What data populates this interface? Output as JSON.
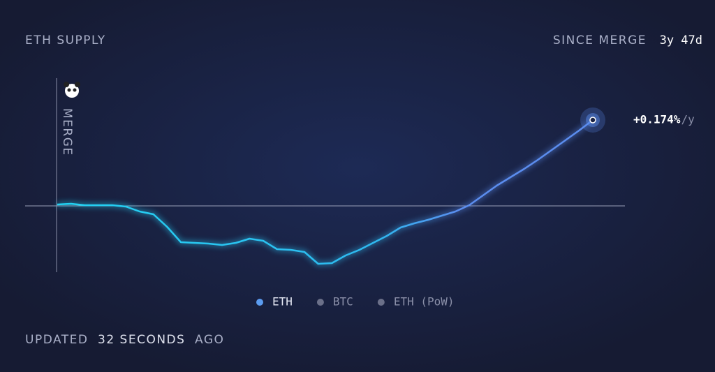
{
  "header": {
    "title": "ETH SUPPLY",
    "since_label": "SINCE MERGE",
    "since_value": "3y 47d"
  },
  "chart_data": {
    "type": "line",
    "marker_label": "MERGE",
    "series": [
      {
        "name": "ETH",
        "color": "#5b8def",
        "values": [
          2,
          3,
          1,
          1,
          1,
          -1,
          -8,
          -12,
          -30,
          -52,
          -53,
          -54,
          -56,
          -53,
          -47,
          -50,
          -62,
          -63,
          -66,
          -83,
          -82,
          -71,
          -63,
          -53,
          -43,
          -31,
          -25,
          -20,
          -14,
          -8,
          1,
          15,
          29,
          41,
          53,
          66,
          80,
          94,
          108,
          123
        ]
      }
    ],
    "legend": [
      {
        "name": "ETH",
        "color": "#5b9cf0"
      },
      {
        "name": "BTC",
        "color": "#6b7089"
      },
      {
        "name": "ETH (PoW)",
        "color": "#6b7089"
      }
    ],
    "end_label": "+0.174%",
    "end_unit": "/y"
  },
  "footer": {
    "prefix": "UPDATED",
    "amount": "32 SECONDS",
    "suffix": "AGO"
  }
}
